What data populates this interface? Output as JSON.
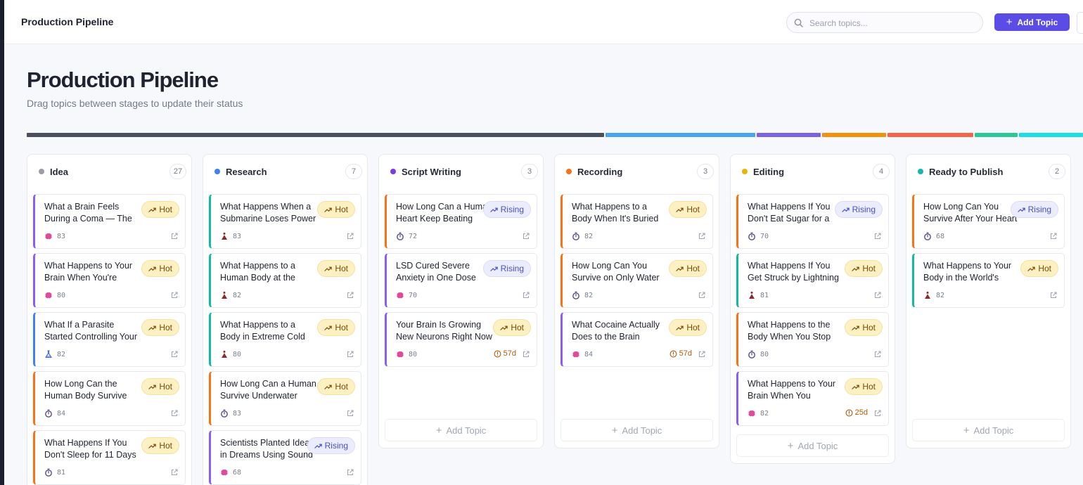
{
  "header": {
    "title": "Production Pipeline",
    "search_placeholder": "Search topics...",
    "add_button": "Add Topic"
  },
  "page": {
    "title": "Production Pipeline",
    "subtitle": "Drag topics between stages to update their status"
  },
  "progress_colors": [
    "#4b4f5e",
    "#4aa3f0",
    "#7b63e2",
    "#f0920e",
    "#f2654a",
    "#2dc79a",
    "#1cdbea"
  ],
  "stage_share": [
    27,
    7,
    3,
    3,
    4,
    2,
    3
  ],
  "category_colors": {
    "brain": "#e04a9a",
    "body": "#8e2a2a",
    "timer": "#5a4a8a",
    "lab": "#4a6fd0"
  },
  "add_topic_label": "Add Topic",
  "columns": [
    {
      "name": "Idea",
      "count": "27",
      "dot": "#9a9ca6",
      "show_add": false,
      "cards": [
        {
          "title": "What a Brain Feels During a Coma — The Experience",
          "badge": "Hot",
          "badge_type": "hot",
          "score": "83",
          "icon": "brain",
          "accent": "#8b5cf6"
        },
        {
          "title": "What Happens to Your Brain When You're Falling Asleep",
          "badge": "Hot",
          "badge_type": "hot",
          "score": "80",
          "icon": "brain",
          "accent": "#8b5cf6"
        },
        {
          "title": "What If a Parasite Started Controlling Your Mind",
          "badge": "Hot",
          "badge_type": "hot",
          "score": "82",
          "icon": "lab",
          "accent": "#3b82f6"
        },
        {
          "title": "How Long Can the Human Body Survive Without Sleep",
          "badge": "Hot",
          "badge_type": "hot",
          "score": "84",
          "icon": "timer",
          "accent": "#f97316"
        },
        {
          "title": "What Happens If You Don't Sleep for 11 Days",
          "badge": "Hot",
          "badge_type": "hot",
          "score": "81",
          "icon": "timer",
          "accent": "#f97316"
        }
      ]
    },
    {
      "name": "Research",
      "count": "7",
      "dot": "#3b82f6",
      "show_add": false,
      "cards": [
        {
          "title": "What Happens When a Submarine Loses Power",
          "badge": "Hot",
          "badge_type": "hot",
          "score": "83",
          "icon": "body",
          "accent": "#14b8a6"
        },
        {
          "title": "What Happens to a Human Body at the Bottom of the Ocean",
          "badge": "Hot",
          "badge_type": "hot",
          "score": "82",
          "icon": "body",
          "accent": "#14b8a6"
        },
        {
          "title": "What Happens to a Body in Extreme Cold",
          "badge": "Hot",
          "badge_type": "hot",
          "score": "80",
          "icon": "body",
          "accent": "#14b8a6"
        },
        {
          "title": "How Long Can a Human Survive Underwater",
          "badge": "Hot",
          "badge_type": "hot",
          "score": "83",
          "icon": "timer",
          "accent": "#f97316"
        },
        {
          "title": "Scientists Planted Ideas in Dreams Using Sound",
          "badge": "Rising",
          "badge_type": "rising",
          "score": "68",
          "icon": "brain",
          "accent": "#8b5cf6"
        }
      ]
    },
    {
      "name": "Script Writing",
      "count": "3",
      "dot": "#7c3aed",
      "show_add": true,
      "cards": [
        {
          "title": "How Long Can a Human Heart Keep Beating",
          "badge": "Rising",
          "badge_type": "rising",
          "score": "72",
          "icon": "timer",
          "accent": "#f97316"
        },
        {
          "title": "LSD Cured Severe Anxiety in One Dose",
          "badge": "Rising",
          "badge_type": "rising",
          "score": "70",
          "icon": "brain",
          "accent": "#8b5cf6"
        },
        {
          "title": "Your Brain Is Growing New Neurons Right Now",
          "badge": "Hot",
          "badge_type": "hot",
          "score": "80",
          "icon": "brain",
          "accent": "#8b5cf6",
          "days": "57d"
        }
      ]
    },
    {
      "name": "Recording",
      "count": "3",
      "dot": "#f97316",
      "show_add": true,
      "cards": [
        {
          "title": "What Happens to a Body When It's Buried Alive",
          "badge": "Hot",
          "badge_type": "hot",
          "score": "82",
          "icon": "timer",
          "accent": "#f97316"
        },
        {
          "title": "How Long Can You Survive on Only Water",
          "badge": "Hot",
          "badge_type": "hot",
          "score": "82",
          "icon": "timer",
          "accent": "#f97316"
        },
        {
          "title": "What Cocaine Actually Does to the Brain",
          "badge": "Hot",
          "badge_type": "hot",
          "score": "84",
          "icon": "brain",
          "accent": "#8b5cf6",
          "days": "57d"
        }
      ]
    },
    {
      "name": "Editing",
      "count": "4",
      "dot": "#eab308",
      "show_add": true,
      "cards": [
        {
          "title": "What Happens If You Don't Eat Sugar for a Month",
          "badge": "Rising",
          "badge_type": "rising",
          "score": "70",
          "icon": "timer",
          "accent": "#f97316"
        },
        {
          "title": "What Happens If You Get Struck by Lightning",
          "badge": "Hot",
          "badge_type": "hot",
          "score": "81",
          "icon": "body",
          "accent": "#14b8a6"
        },
        {
          "title": "What Happens to the Body When You Stop Eating",
          "badge": "Hot",
          "badge_type": "hot",
          "score": "80",
          "icon": "timer",
          "accent": "#f97316"
        },
        {
          "title": "What Happens to Your Brain When You Meditate",
          "badge": "Hot",
          "badge_type": "hot",
          "score": "82",
          "icon": "brain",
          "accent": "#8b5cf6",
          "days": "25d"
        }
      ]
    },
    {
      "name": "Ready to Publish",
      "count": "2",
      "dot": "#14b8a6",
      "show_add": true,
      "cards": [
        {
          "title": "How Long Can You Survive After Your Heart Stops",
          "badge": "Rising",
          "badge_type": "rising",
          "score": "68",
          "icon": "timer",
          "accent": "#f97316"
        },
        {
          "title": "What Happens to Your Body in the World's Deepest Hole",
          "badge": "Hot",
          "badge_type": "hot",
          "score": "82",
          "icon": "body",
          "accent": "#14b8a6"
        }
      ]
    }
  ]
}
